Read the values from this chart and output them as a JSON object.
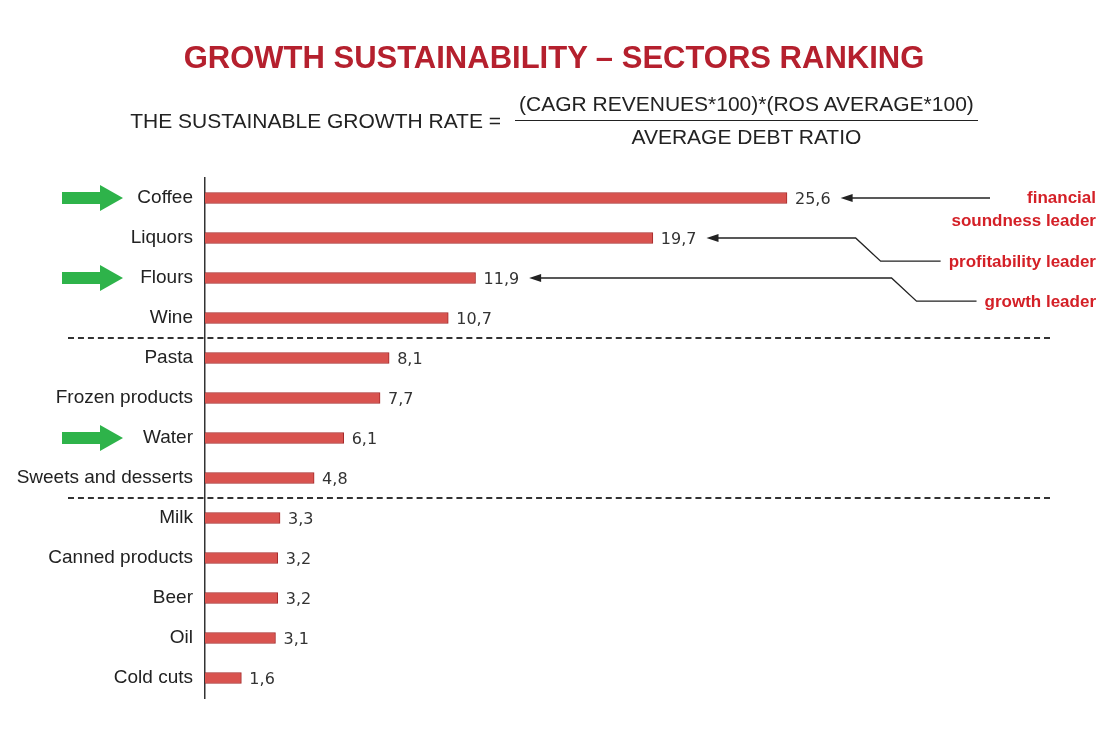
{
  "chart_data": {
    "type": "bar",
    "orientation": "horizontal",
    "title": "GROWTH SUSTAINABILITY – SECTORS RANKING",
    "subtitle": "THE SUSTAINABLE GROWTH RATE =",
    "categories": [
      "Coffee",
      "Liquors",
      "Flours",
      "Wine",
      "Pasta",
      "Frozen products",
      "Water",
      "Sweets and desserts",
      "Milk",
      "Canned products",
      "Beer",
      "Oil",
      "Cold cuts"
    ],
    "values": [
      25.6,
      19.7,
      11.9,
      10.7,
      8.1,
      7.7,
      6.1,
      4.8,
      3.3,
      3.2,
      3.2,
      3.1,
      1.6
    ],
    "value_labels": [
      "25,6",
      "19,7",
      "11,9",
      "10,7",
      "8,1",
      "7,7",
      "6,1",
      "4,8",
      "3,3",
      "3,2",
      "3,2",
      "3,1",
      "1,6"
    ],
    "color": "#d9534f",
    "tick_labels": "y",
    "annotations": [
      "(CAGR REVENUES*100)*(ROS AVERAGE*100)",
      "AVERAGE DEBT RATIO",
      "financial soundness leader",
      "profitability leader",
      "growth leader"
    ]
  }
}
